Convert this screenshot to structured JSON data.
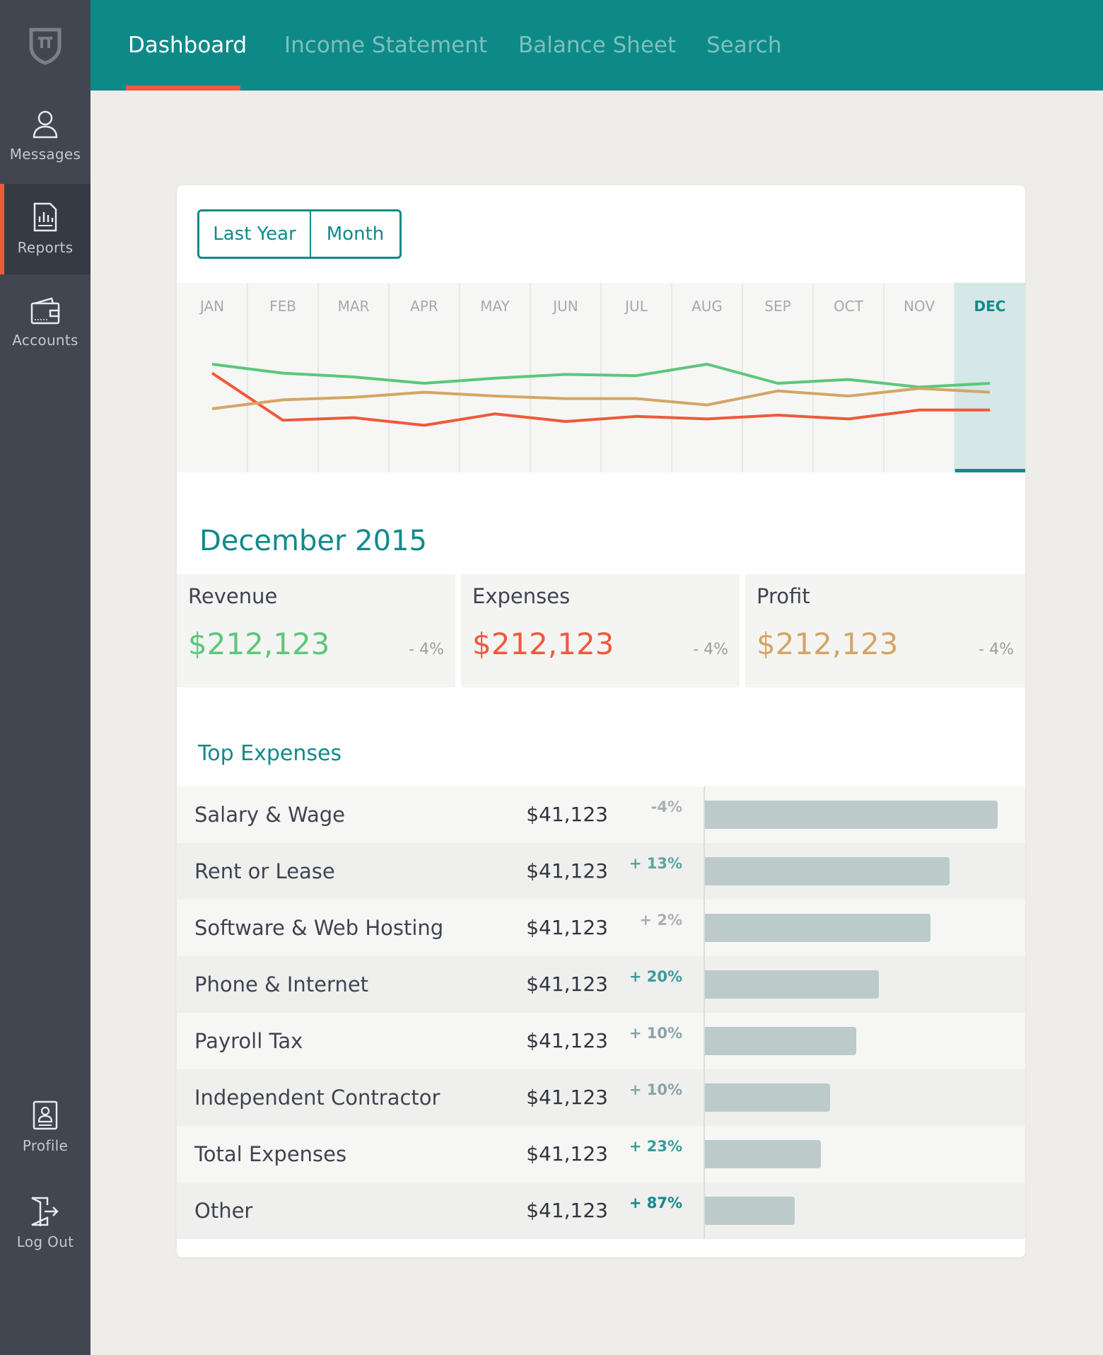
{
  "sidebar": {
    "logo": "pi-shield-icon",
    "items": [
      {
        "label": "Messages",
        "icon": "user-icon"
      },
      {
        "label": "Reports",
        "icon": "report-icon"
      },
      {
        "label": "Accounts",
        "icon": "wallet-icon"
      },
      {
        "label": "Profile",
        "icon": "profile-card-icon"
      },
      {
        "label": "Log Out",
        "icon": "logout-icon"
      }
    ],
    "active": "Reports"
  },
  "nav": {
    "tabs": [
      "Dashboard",
      "Income Statement",
      "Balance Sheet",
      "Search"
    ],
    "active": "Dashboard"
  },
  "toggle": {
    "option1": "Last Year",
    "option2": "Month"
  },
  "chart_data": {
    "type": "line",
    "categories": [
      "JAN",
      "FEB",
      "MAR",
      "APR",
      "MAY",
      "JUN",
      "JUL",
      "AUG",
      "SEP",
      "OCT",
      "NOV",
      "DEC"
    ],
    "selected": "DEC",
    "series": [
      {
        "name": "Revenue",
        "color": "#5cc77a",
        "values": [
          75,
          68,
          65,
          60,
          64,
          67,
          66,
          75,
          60,
          63,
          57,
          60
        ]
      },
      {
        "name": "Expenses",
        "color": "#ee5a3c",
        "values": [
          68,
          31,
          33,
          27,
          36,
          30,
          34,
          32,
          35,
          32,
          39,
          39
        ]
      },
      {
        "name": "Profit",
        "color": "#d5a565",
        "values": [
          40,
          47,
          49,
          53,
          50,
          48,
          48,
          43,
          54,
          50,
          56,
          53
        ]
      }
    ],
    "ylim": [
      0,
      100
    ]
  },
  "period": {
    "title": "December 2015"
  },
  "stats": [
    {
      "label": "Revenue",
      "value": "$212,123",
      "change": "- 4%",
      "color": "#5cc77a"
    },
    {
      "label": "Expenses",
      "value": "$212,123",
      "change": "- 4%",
      "color": "#ee5a3c"
    },
    {
      "label": "Profit",
      "value": "$212,123",
      "change": "- 4%",
      "color": "#d5a565"
    }
  ],
  "expenses": {
    "title": "Top Expenses",
    "rows": [
      {
        "name": "Salary & Wage",
        "amount": "$41,123",
        "change": "-4%",
        "bar": 0.91,
        "change_color": "#a9b0b4"
      },
      {
        "name": "Rent or Lease",
        "amount": "$41,123",
        "change": "+ 13%",
        "bar": 0.76,
        "change_color": "#5aa4a0"
      },
      {
        "name": "Software & Web Hosting",
        "amount": "$41,123",
        "change": "+ 2%",
        "bar": 0.7,
        "change_color": "#a9b0b4"
      },
      {
        "name": "Phone & Internet",
        "amount": "$41,123",
        "change": "+ 20%",
        "bar": 0.54,
        "change_color": "#3a9c98"
      },
      {
        "name": "Payroll Tax",
        "amount": "$41,123",
        "change": "+ 10%",
        "bar": 0.47,
        "change_color": "#8aa3a6"
      },
      {
        "name": "Independent Contractor",
        "amount": "$41,123",
        "change": "+ 10%",
        "bar": 0.39,
        "change_color": "#8aa3a6"
      },
      {
        "name": "Total Expenses",
        "amount": "$41,123",
        "change": "+ 23%",
        "bar": 0.36,
        "change_color": "#3a9c98"
      },
      {
        "name": "Other",
        "amount": "$41,123",
        "change": "+ 87%",
        "bar": 0.28,
        "change_color": "#12898a"
      }
    ]
  }
}
